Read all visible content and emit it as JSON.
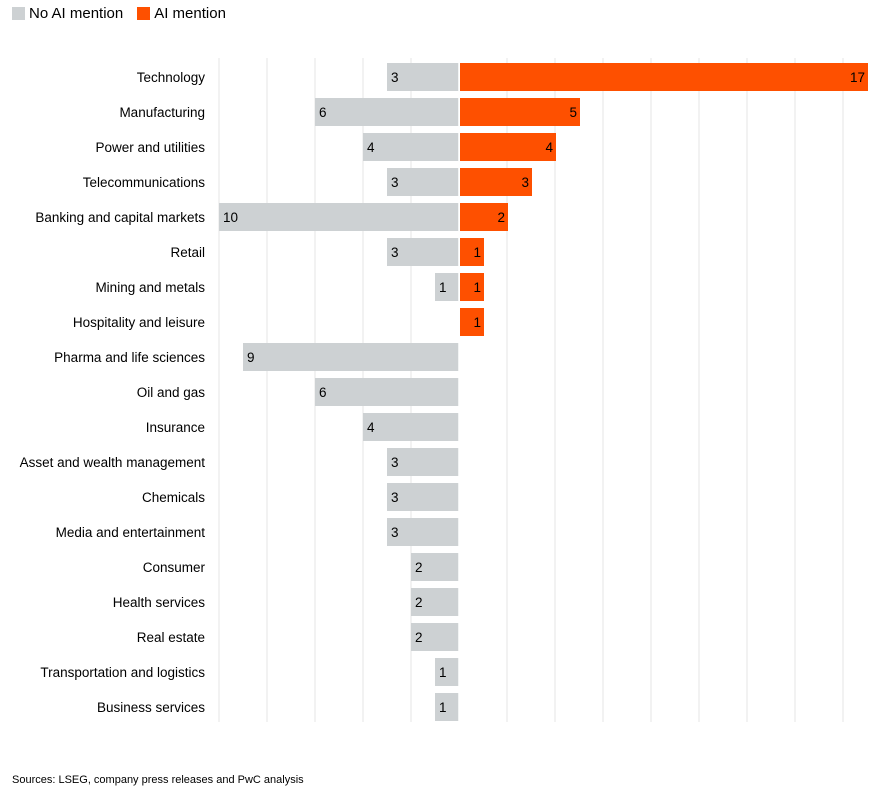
{
  "legend": {
    "no_ai_label": "No AI mention",
    "ai_label": "AI mention"
  },
  "colors": {
    "no_ai": "#cdd1d3",
    "ai": "#fe5000",
    "grid": "#e6e6e6"
  },
  "source": "Sources: LSEG, company press releases and PwC analysis",
  "chart_data": {
    "type": "bar",
    "orientation": "horizontal-diverging",
    "title": "",
    "xlabel": "",
    "ylabel": "",
    "legend_position": "top-left",
    "grid": true,
    "categories": [
      "Technology",
      "Manufacturing",
      "Power and utilities",
      "Telecommunications",
      "Banking and capital markets",
      "Retail",
      "Mining and metals",
      "Hospitality and leisure",
      "Pharma and life sciences",
      "Oil and gas",
      "Insurance",
      "Asset and wealth management",
      "Chemicals",
      "Media and entertainment",
      "Consumer",
      "Health services",
      "Real estate",
      "Transportation and logistics",
      "Business services"
    ],
    "series": [
      {
        "name": "No AI mention",
        "values": [
          3,
          6,
          4,
          3,
          10,
          3,
          1,
          0,
          9,
          6,
          4,
          3,
          3,
          3,
          2,
          2,
          2,
          1,
          1
        ]
      },
      {
        "name": "AI mention",
        "values": [
          17,
          5,
          4,
          3,
          2,
          1,
          1,
          1,
          0,
          0,
          0,
          0,
          0,
          0,
          0,
          0,
          0,
          0,
          0
        ]
      }
    ],
    "xlim": [
      -10,
      17
    ]
  }
}
